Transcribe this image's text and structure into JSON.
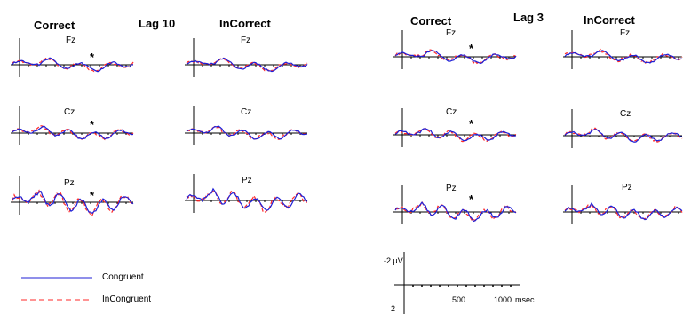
{
  "headers": {
    "lag10": "Lag 10",
    "lag3": "Lag 3",
    "correct": "Correct",
    "incorrect": "InCorrect"
  },
  "channels": [
    "Fz",
    "Cz",
    "Pz"
  ],
  "significance_marker": "*",
  "legend": {
    "congruent": "Congruent",
    "incongruent": "InCongruent"
  },
  "scale": {
    "amplitude_label": "-2 μV",
    "lower_label": "2",
    "ticks": [
      "500",
      "1000"
    ],
    "time_unit": "msec"
  },
  "colors": {
    "congruent": "#1f1fd6",
    "incongruent": "#ff2a2a",
    "axis": "#000000"
  },
  "chart_data": {
    "type": "line",
    "description_units": "amplitude in microvolts (negative up), time in msec",
    "x_range_msec": [
      -100,
      1200
    ],
    "y_range_uv": [
      -2,
      2
    ],
    "series_names": [
      "Congruent",
      "InCongruent"
    ],
    "panels": [
      {
        "lag": "Lag 10",
        "response": "Correct",
        "channel": "Fz",
        "significant": true
      },
      {
        "lag": "Lag 10",
        "response": "Correct",
        "channel": "Cz",
        "significant": true
      },
      {
        "lag": "Lag 10",
        "response": "Correct",
        "channel": "Pz",
        "significant": true
      },
      {
        "lag": "Lag 10",
        "response": "InCorrect",
        "channel": "Fz",
        "significant": false
      },
      {
        "lag": "Lag 10",
        "response": "InCorrect",
        "channel": "Cz",
        "significant": false
      },
      {
        "lag": "Lag 10",
        "response": "InCorrect",
        "channel": "Pz",
        "significant": false
      },
      {
        "lag": "Lag 3",
        "response": "Correct",
        "channel": "Fz",
        "significant": true
      },
      {
        "lag": "Lag 3",
        "response": "Correct",
        "channel": "Cz",
        "significant": true
      },
      {
        "lag": "Lag 3",
        "response": "Correct",
        "channel": "Pz",
        "significant": true
      },
      {
        "lag": "Lag 3",
        "response": "InCorrect",
        "channel": "Fz",
        "significant": false
      },
      {
        "lag": "Lag 3",
        "response": "InCorrect",
        "channel": "Cz",
        "significant": false
      },
      {
        "lag": "Lag 3",
        "response": "InCorrect",
        "channel": "Pz",
        "significant": false
      }
    ]
  }
}
